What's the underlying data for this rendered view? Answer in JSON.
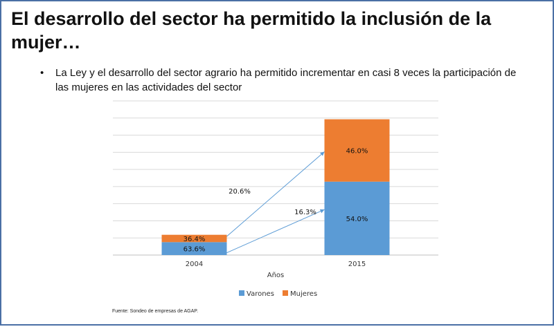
{
  "slide": {
    "title": "El desarrollo del sector ha permitido la inclusión de la mujer…",
    "bullet": "La Ley y el desarrollo del sector agrario ha permitido incrementar en casi 8 veces la participación de las mujeres en las actividades del sector",
    "source": "Fuente: Sondeo de empresas de AGAP."
  },
  "chart_data": {
    "type": "bar",
    "stacked": true,
    "categories": [
      "2004",
      "2015"
    ],
    "xlabel": "Años",
    "ylabel": "",
    "grid": true,
    "legend_position": "bottom",
    "series": [
      {
        "name": "Varones",
        "color": "#5b9bd5",
        "values": [
          1.76,
          10.0
        ],
        "labels": [
          "63.6%",
          "54.0%"
        ]
      },
      {
        "name": "Mujeres",
        "color": "#ed7d31",
        "values": [
          1.0,
          8.5
        ],
        "labels": [
          "36.4%",
          "46.0%"
        ]
      }
    ],
    "ylim": [
      0,
      21
    ],
    "growth_annotations": [
      {
        "series": "Mujeres",
        "label": "20.6%"
      },
      {
        "series": "Varones",
        "label": "16.3%"
      }
    ]
  }
}
